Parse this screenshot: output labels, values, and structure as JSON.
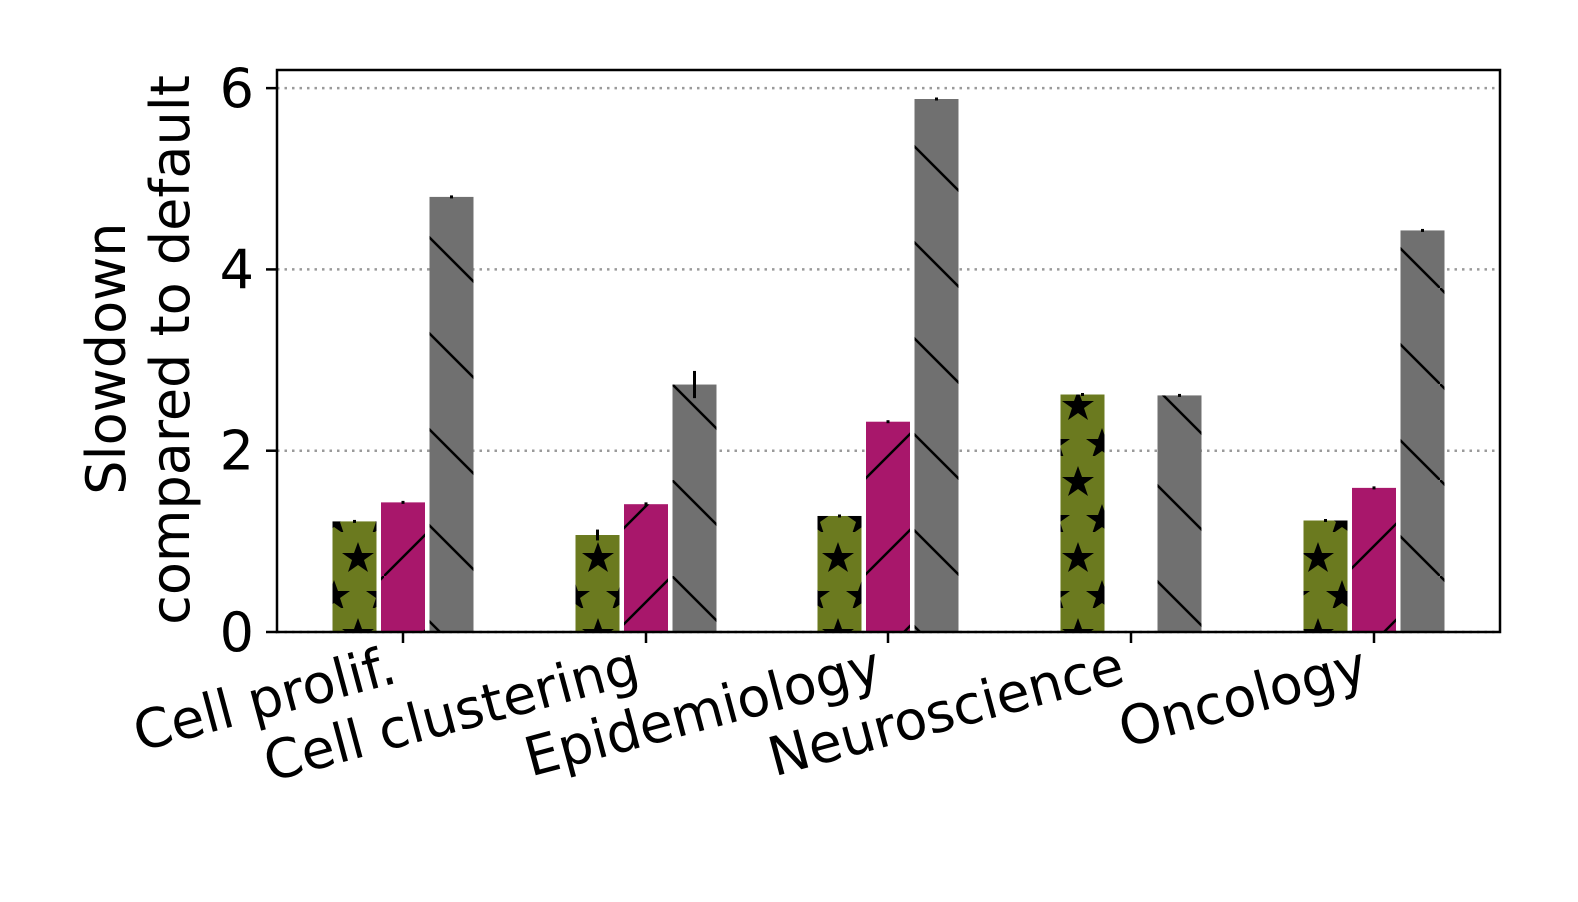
{
  "chart_data": {
    "type": "bar",
    "title": "",
    "xlabel": "",
    "ylabel_lines": [
      "Slowdown",
      "compared to default"
    ],
    "ylim": [
      0,
      6.2
    ],
    "yticks": [
      0,
      2,
      4,
      6
    ],
    "grid": "y dotted",
    "categories": [
      "Cell prolif.",
      "Cell clustering",
      "Epidemiology",
      "Neuroscience",
      "Oncology"
    ],
    "series": [
      {
        "color": "#6b7a1f",
        "hatch": "stars",
        "values": [
          1.22,
          1.07,
          1.28,
          2.62,
          1.23
        ],
        "errors": [
          0.01,
          0.06,
          0.01,
          0.01,
          0.01
        ]
      },
      {
        "color": "#a8176b",
        "hatch": "forward-diagonal",
        "values": [
          1.43,
          1.41,
          2.32,
          null,
          1.59
        ],
        "errors": [
          0.01,
          0.02,
          0.0,
          null,
          0.0
        ]
      },
      {
        "color": "#707070",
        "hatch": "back-diagonal",
        "values": [
          4.8,
          2.73,
          5.88,
          2.61,
          4.43
        ],
        "errors": [
          0.0,
          0.15,
          0.01,
          0.0,
          0.01
        ]
      }
    ]
  }
}
